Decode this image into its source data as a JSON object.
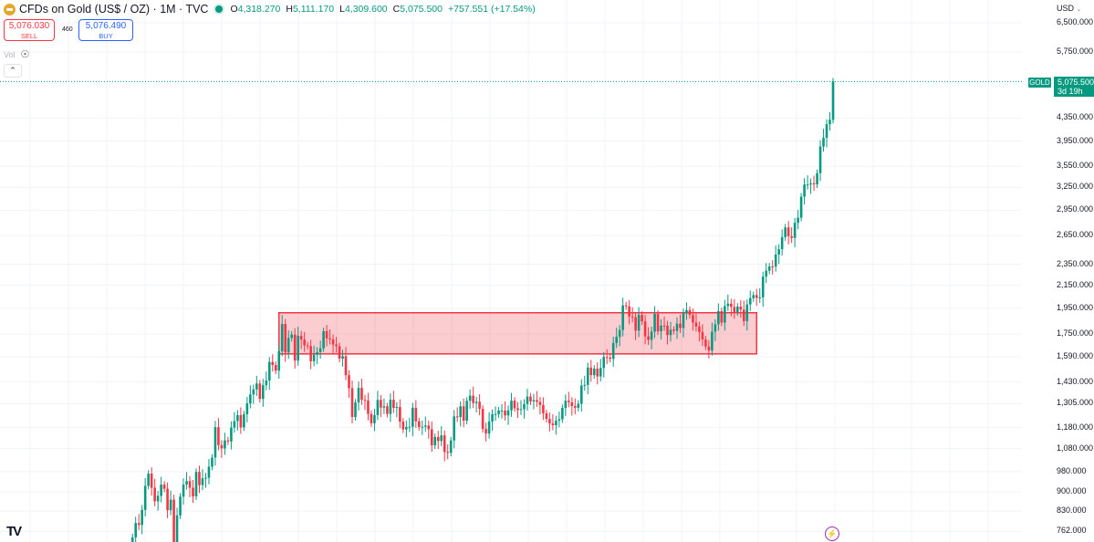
{
  "header": {
    "title": "CFDs on Gold (US$ / OZ) · 1M · TVC",
    "open_label": "O",
    "open": "4,318.270",
    "high_label": "H",
    "high": "5,111.170",
    "low_label": "L",
    "low": "4,309.600",
    "close_label": "C",
    "close": "5,075.500",
    "change": "+757.551 (+17.54%)"
  },
  "trade": {
    "sell_price": "5,076.030",
    "sell_label": "SELL",
    "spread": "460",
    "buy_price": "5,076.490",
    "buy_label": "BUY"
  },
  "indicators": {
    "vol_label": "Vol"
  },
  "axis": {
    "currency": "USD"
  },
  "price_tag": {
    "symbol": "GOLD",
    "price": "5,075.500",
    "countdown": "3d 19h"
  },
  "colors": {
    "up": "#089981",
    "down": "#f23645",
    "zone_fill": "#f23645",
    "grid": "#f0f3fa"
  },
  "chart_data": {
    "type": "candlestick",
    "title": "CFDs on Gold (US$ / OZ) · 1M · TVC",
    "scale": "log",
    "ylim": [
      762,
      6500
    ],
    "y_ticks": [
      "6,500.000",
      "5,750.000",
      "4,350.000",
      "3,950.000",
      "3,550.000",
      "3,250.000",
      "2,950.000",
      "2,650.000",
      "2,350.000",
      "2,150.000",
      "1,950.000",
      "1,750.000",
      "1,590.000",
      "1,430.000",
      "1,305.000",
      "1,180.000",
      "1,080.000",
      "980.000",
      "900.000",
      "830.000",
      "762.000"
    ],
    "y_tick_values": [
      6500,
      5750,
      4350,
      3950,
      3550,
      3250,
      2950,
      2650,
      2350,
      2150,
      1950,
      1750,
      1590,
      1430,
      1305,
      1180,
      1080,
      980,
      900,
      830,
      762
    ],
    "start_month": "2007-09",
    "first_open": 672,
    "closes": [
      743,
      789,
      783,
      834,
      923,
      972,
      916,
      865,
      885,
      928,
      912,
      833,
      871,
      718,
      815,
      882,
      928,
      942,
      916,
      883,
      979,
      926,
      953,
      955,
      1001,
      1040,
      1182,
      1096,
      1081,
      1118,
      1113,
      1180,
      1213,
      1244,
      1181,
      1248,
      1307,
      1357,
      1386,
      1421,
      1332,
      1411,
      1439,
      1556,
      1536,
      1500,
      1628,
      1826,
      1620,
      1722,
      1746,
      1565,
      1737,
      1710,
      1669,
      1664,
      1561,
      1604,
      1622,
      1648,
      1772,
      1719,
      1711,
      1675,
      1663,
      1578,
      1595,
      1472,
      1393,
      1234,
      1312,
      1395,
      1327,
      1323,
      1250,
      1202,
      1244,
      1326,
      1284,
      1291,
      1250,
      1327,
      1282,
      1287,
      1210,
      1171,
      1183,
      1184,
      1283,
      1212,
      1183,
      1184,
      1190,
      1172,
      1095,
      1134,
      1115,
      1142,
      1065,
      1061,
      1118,
      1237,
      1234,
      1291,
      1215,
      1321,
      1350,
      1309,
      1316,
      1277,
      1173,
      1151,
      1211,
      1248,
      1249,
      1268,
      1268,
      1242,
      1269,
      1322,
      1280,
      1271,
      1275,
      1303,
      1345,
      1318,
      1325,
      1315,
      1298,
      1253,
      1224,
      1201,
      1192,
      1215,
      1222,
      1282,
      1321,
      1313,
      1292,
      1283,
      1305,
      1409,
      1413,
      1520,
      1472,
      1513,
      1464,
      1517,
      1589,
      1585,
      1577,
      1686,
      1730,
      1781,
      1975,
      1967,
      1886,
      1879,
      1776,
      1898,
      1847,
      1734,
      1708,
      1769,
      1906,
      1770,
      1814,
      1813,
      1743,
      1783,
      1774,
      1829,
      1796,
      1909,
      1937,
      1897,
      1837,
      1807,
      1766,
      1711,
      1661,
      1633,
      1768,
      1824,
      1928,
      1837,
      1969,
      1990,
      1963,
      1919,
      1965,
      1940,
      1849,
      1983,
      2036,
      2063,
      2039,
      2044,
      2230,
      2286,
      2327,
      2326,
      2447,
      2503,
      2634,
      2744,
      2643,
      2625,
      2798,
      2858,
      3124,
      3288,
      3289,
      3303,
      3290,
      3448,
      3858,
      4002,
      4239,
      4318,
      5075.5
    ],
    "zone": {
      "from": "2011-07",
      "to": "2024-01",
      "low": 1610,
      "high": 1915
    },
    "last_price": 5075.5
  }
}
